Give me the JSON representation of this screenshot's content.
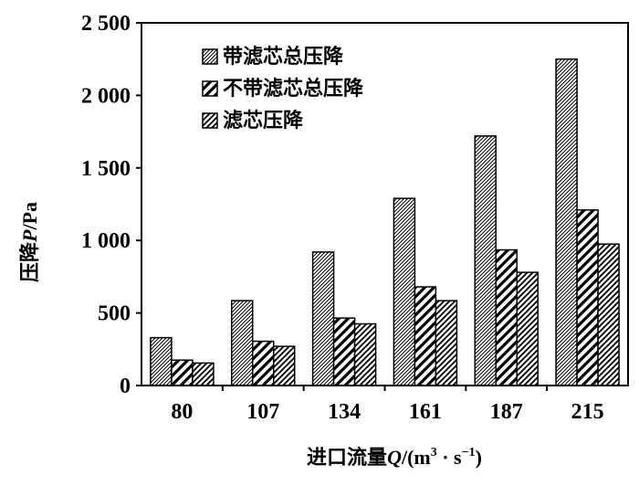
{
  "chart_data": {
    "type": "bar",
    "categories": [
      "80",
      "107",
      "134",
      "161",
      "187",
      "215"
    ],
    "series": [
      {
        "name": "带滤芯总压降",
        "values": [
          330,
          585,
          920,
          1290,
          1720,
          2250
        ]
      },
      {
        "name": "不带滤芯总压降",
        "values": [
          175,
          305,
          465,
          680,
          935,
          1210
        ]
      },
      {
        "name": "滤芯压降",
        "values": [
          155,
          270,
          425,
          585,
          780,
          975
        ]
      }
    ],
    "ylim": [
      0,
      2500
    ],
    "yticks": [
      0,
      500,
      1000,
      1500,
      2000,
      2500
    ],
    "ytick_labels": [
      "0",
      "500",
      "1 000",
      "1 500",
      "2 000",
      "2 500"
    ],
    "ylabel": {
      "prefix": "压降",
      "symbol": "P",
      "unit": "/Pa"
    },
    "xlabel": {
      "prefix": "进口流量",
      "symbol": "Q",
      "unit_open": "/(m",
      "exp1": "3",
      "dot": " · s",
      "exp2": "−1",
      "unit_close": ")"
    },
    "legend_position": "top-left",
    "grid": false,
    "colors": {
      "axis": "#000000",
      "bar_fill": "#ffffff",
      "hatch": "#000000"
    }
  }
}
